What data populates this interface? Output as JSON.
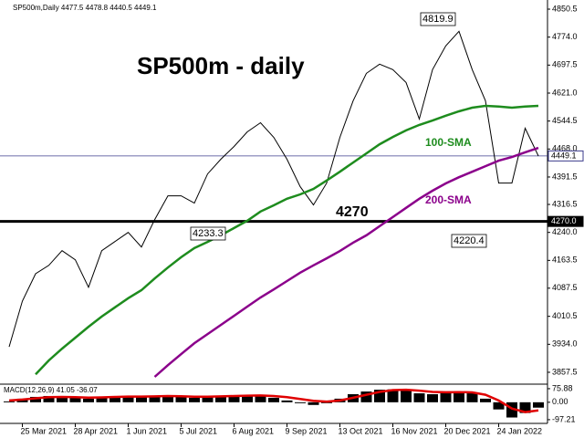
{
  "chart_data": [
    {
      "type": "line",
      "header": "SP500m,Daily  4477.5 4478.8 4440.5 4449.1",
      "title": "SP500m - daily",
      "categories": [
        null,
        "25 Mar 2021",
        null,
        null,
        null,
        "28 Apr 2021",
        null,
        null,
        null,
        "1 Jun 2021",
        null,
        null,
        null,
        "5 Jul 2021",
        null,
        null,
        null,
        "6 Aug 2021",
        null,
        null,
        null,
        "9 Sep 2021",
        null,
        null,
        null,
        "13 Oct 2021",
        null,
        null,
        null,
        "16 Nov 2021",
        null,
        null,
        null,
        "20 Dec 2021",
        null,
        null,
        null,
        "24 Jan 2022",
        null,
        null,
        null
      ],
      "series": [
        {
          "color": "#000000",
          "values": [
            3927,
            4052,
            4127,
            4150,
            4190,
            4165,
            4090,
            4190,
            4215,
            4240,
            4200,
            4275,
            4340,
            4340,
            4320,
            4400,
            4440,
            4475,
            4515,
            4540,
            4500,
            4440,
            4365,
            4315,
            4375,
            4500,
            4600,
            4675,
            4700,
            4685,
            4650,
            4550,
            4685,
            4750,
            4790,
            4685,
            4600,
            4375,
            4375,
            4525,
            4449.1
          ]
        },
        {
          "name": "100-SMA",
          "color": "#1e8c1e",
          "values": [
            null,
            null,
            3852,
            3890,
            3922,
            3952,
            3982,
            4010,
            4035,
            4060,
            4082,
            4114,
            4144,
            4172,
            4197,
            4214,
            4232,
            4252,
            4272,
            4297,
            4314,
            4332,
            4344,
            4359,
            4382,
            4406,
            4431,
            4456,
            4481,
            4501,
            4519,
            4534,
            4546,
            4559,
            4571,
            4581,
            4586,
            4584,
            4581,
            4584,
            4586
          ]
        },
        {
          "name": "200-SMA",
          "color": "#8b008b",
          "values": [
            null,
            null,
            null,
            null,
            null,
            null,
            null,
            null,
            null,
            null,
            null,
            3845,
            3877,
            3907,
            3937,
            3962,
            3987,
            4012,
            4037,
            4062,
            4084,
            4107,
            4130,
            4150,
            4169,
            4189,
            4212,
            4232,
            4257,
            4282,
            4307,
            4332,
            4354,
            4374,
            4391,
            4406,
            4421,
            4436,
            4446,
            4459,
            4471
          ]
        }
      ],
      "ylim": [
        3827.5,
        4875.5
      ],
      "yticks": [
        4850.5,
        {
          "value": 4774,
          "label": "4774.0"
        },
        4697.5,
        {
          "value": 4621,
          "label": "4621.0"
        },
        4544.5,
        {
          "value": 4468,
          "label": "4468.0"
        },
        4391.5,
        4316.5,
        {
          "value": 4240,
          "label": "4240.0"
        },
        4163.5,
        4087.5,
        4010.5,
        {
          "value": 3934,
          "label": "3934.0"
        },
        3857.5
      ],
      "hlines": [
        {
          "value": 4270,
          "label": "4270.0",
          "color": "#000000"
        },
        {
          "value": 4449.1,
          "label": "4449.1",
          "color": "#3c3c8c"
        }
      ],
      "annotations": [
        "4819.9",
        "4233.3",
        "4220.4",
        "4270"
      ]
    },
    {
      "type": "bar",
      "label": "MACD(12,26,9) 41.05 -36.07",
      "series": [
        {
          "color": "#000000",
          "values": [
            5,
            20,
            30,
            35,
            30,
            25,
            20,
            28,
            32,
            35,
            30,
            33,
            38,
            35,
            25,
            30,
            35,
            38,
            40,
            38,
            25,
            10,
            -5,
            -15,
            -5,
            20,
            45,
            60,
            70,
            72,
            65,
            50,
            45,
            55,
            60,
            50,
            20,
            -40,
            -85,
            -60,
            -30
          ]
        },
        {
          "type": "line",
          "color": "#e00000",
          "values": [
            10,
            15,
            22,
            28,
            30,
            28,
            26,
            27,
            30,
            32,
            32,
            33,
            35,
            34,
            31,
            31,
            33,
            35,
            37,
            38,
            35,
            28,
            18,
            8,
            4,
            10,
            25,
            42,
            58,
            68,
            70,
            65,
            58,
            56,
            57,
            55,
            42,
            10,
            -35,
            -55,
            -45
          ]
        }
      ],
      "ylim": [
        -118,
        96
      ],
      "yticks": [
        75.88,
        {
          "value": 0,
          "label": "0.00"
        },
        -97.21
      ]
    }
  ]
}
